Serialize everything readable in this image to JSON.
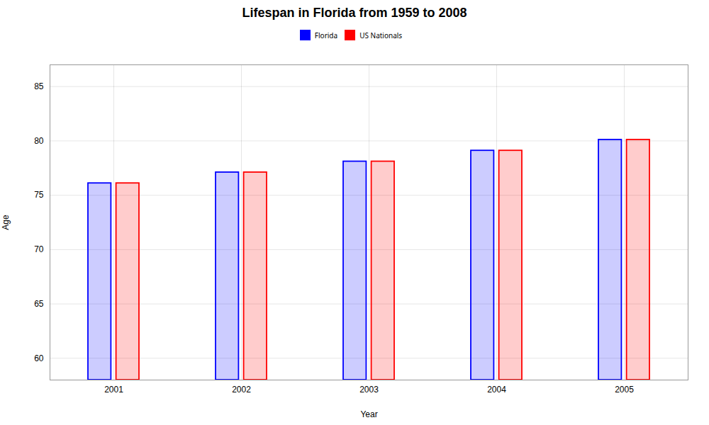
{
  "chart_data": {
    "type": "bar",
    "title": "Lifespan in Florida from 1959 to 2008",
    "xlabel": "Year",
    "ylabel": "Age",
    "categories": [
      "2001",
      "2002",
      "2003",
      "2004",
      "2005"
    ],
    "series": [
      {
        "name": "Florida",
        "color": "#0000ff",
        "values": [
          76.1,
          77.1,
          78.1,
          79.1,
          80.1
        ]
      },
      {
        "name": "US Nationals",
        "color": "#ff0000",
        "values": [
          76.1,
          77.1,
          78.1,
          79.1,
          80.1
        ]
      }
    ],
    "ylim": [
      58,
      87
    ],
    "yticks": [
      60,
      65,
      70,
      75,
      80,
      85
    ],
    "grid": true,
    "legend": "top"
  }
}
